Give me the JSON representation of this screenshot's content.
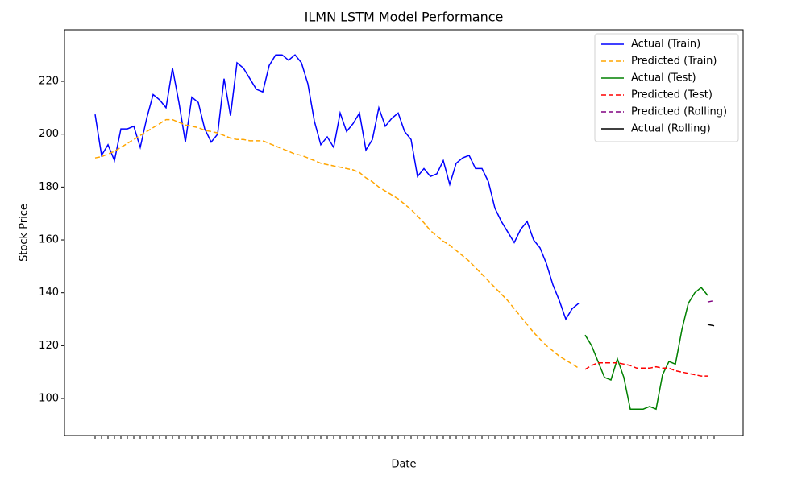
{
  "chart_data": {
    "type": "line",
    "title": "ILMN LSTM Model Performance",
    "x_label": "Date",
    "y_label": "Stock Price",
    "categories": [
      null,
      null,
      null,
      null,
      null,
      null,
      null,
      null,
      null,
      null,
      null,
      null,
      null,
      null,
      null,
      null,
      null,
      null,
      null,
      null,
      null,
      null,
      null,
      null,
      null,
      null,
      null,
      null,
      null,
      null,
      null,
      null,
      null,
      null,
      null,
      null,
      null,
      null,
      null,
      null,
      null,
      null,
      null,
      null,
      null,
      null,
      null,
      null,
      null,
      null,
      null,
      null,
      null,
      null,
      null,
      null,
      null,
      null,
      null,
      null,
      null,
      null,
      null,
      null,
      null,
      null,
      null,
      null,
      null,
      null,
      null,
      null,
      null,
      null,
      null,
      null,
      null,
      null,
      null,
      null,
      null,
      null,
      null,
      null,
      null,
      null,
      null,
      null,
      null,
      null,
      null,
      null,
      null,
      null,
      null,
      null,
      null
    ],
    "series": [
      {
        "name": "Actual (Train)",
        "color": "#0000ff",
        "dash": "solid",
        "values": [
          207.5,
          192,
          196,
          190,
          202,
          202,
          203,
          195,
          206,
          215,
          213,
          210,
          225,
          212,
          197,
          214,
          212,
          202,
          197,
          200,
          221,
          207,
          227,
          225,
          221,
          217,
          216,
          226,
          230,
          230,
          228,
          230,
          227,
          219,
          205,
          196,
          199,
          195,
          208,
          201,
          204,
          208,
          194,
          198,
          210,
          203,
          206,
          208,
          201,
          198,
          184,
          187,
          184,
          185,
          190,
          181,
          189,
          191,
          192,
          187,
          187,
          182,
          172,
          167,
          163,
          159,
          164,
          167,
          160,
          157,
          151,
          143,
          137,
          130,
          134,
          136,
          null,
          null,
          null,
          null,
          null,
          null,
          null,
          null,
          null,
          null,
          null,
          null,
          null,
          null,
          null,
          null,
          null,
          null,
          null,
          null,
          null
        ]
      },
      {
        "name": "Predicted (Train)",
        "color": "#ffa500",
        "dash": "dashed",
        "values": [
          191,
          191.5,
          192.5,
          193.5,
          195,
          196.5,
          198,
          199.5,
          201,
          202.5,
          204,
          205.5,
          205.5,
          204.5,
          203.5,
          203,
          202.5,
          201.5,
          201,
          200.5,
          199.5,
          198.5,
          198,
          198,
          197.5,
          197.5,
          197.5,
          196.5,
          195.5,
          194.5,
          193.5,
          192.5,
          192,
          191,
          190,
          189,
          188.5,
          188,
          187.5,
          187,
          186.5,
          185.5,
          183.5,
          182,
          180,
          178.5,
          177,
          175.5,
          173.5,
          171.5,
          169,
          166.5,
          163.5,
          161.5,
          159.5,
          158,
          156,
          154,
          152,
          149.5,
          147,
          144.5,
          142,
          139.5,
          137,
          134,
          131,
          128,
          125,
          122.5,
          120,
          118,
          116,
          114.5,
          113,
          111.5,
          null,
          null,
          null,
          null,
          null,
          null,
          null,
          null,
          null,
          null,
          null,
          null,
          null,
          null,
          null,
          null,
          null,
          null,
          null,
          null,
          null
        ]
      },
      {
        "name": "Actual (Test)",
        "color": "#008000",
        "dash": "solid",
        "values": [
          null,
          null,
          null,
          null,
          null,
          null,
          null,
          null,
          null,
          null,
          null,
          null,
          null,
          null,
          null,
          null,
          null,
          null,
          null,
          null,
          null,
          null,
          null,
          null,
          null,
          null,
          null,
          null,
          null,
          null,
          null,
          null,
          null,
          null,
          null,
          null,
          null,
          null,
          null,
          null,
          null,
          null,
          null,
          null,
          null,
          null,
          null,
          null,
          null,
          null,
          null,
          null,
          null,
          null,
          null,
          null,
          null,
          null,
          null,
          null,
          null,
          null,
          null,
          null,
          null,
          null,
          null,
          null,
          null,
          null,
          null,
          null,
          null,
          null,
          null,
          null,
          124,
          120,
          114,
          108,
          107,
          115,
          108,
          96,
          96,
          96,
          97,
          96,
          109,
          114,
          113,
          126,
          136,
          140,
          142,
          139,
          null
        ]
      },
      {
        "name": "Predicted (Test)",
        "color": "#ff0000",
        "dash": "dashed",
        "values": [
          null,
          null,
          null,
          null,
          null,
          null,
          null,
          null,
          null,
          null,
          null,
          null,
          null,
          null,
          null,
          null,
          null,
          null,
          null,
          null,
          null,
          null,
          null,
          null,
          null,
          null,
          null,
          null,
          null,
          null,
          null,
          null,
          null,
          null,
          null,
          null,
          null,
          null,
          null,
          null,
          null,
          null,
          null,
          null,
          null,
          null,
          null,
          null,
          null,
          null,
          null,
          null,
          null,
          null,
          null,
          null,
          null,
          null,
          null,
          null,
          null,
          null,
          null,
          null,
          null,
          null,
          null,
          null,
          null,
          null,
          null,
          null,
          null,
          null,
          null,
          null,
          111,
          112.5,
          113.5,
          113.5,
          113.5,
          113.5,
          113,
          112.5,
          111.5,
          111.5,
          111.5,
          112,
          111.5,
          111.5,
          110.5,
          110,
          109.5,
          109,
          108.5,
          108.5,
          null
        ]
      },
      {
        "name": "Predicted (Rolling)",
        "color": "#800080",
        "dash": "dashed",
        "values": [
          null,
          null,
          null,
          null,
          null,
          null,
          null,
          null,
          null,
          null,
          null,
          null,
          null,
          null,
          null,
          null,
          null,
          null,
          null,
          null,
          null,
          null,
          null,
          null,
          null,
          null,
          null,
          null,
          null,
          null,
          null,
          null,
          null,
          null,
          null,
          null,
          null,
          null,
          null,
          null,
          null,
          null,
          null,
          null,
          null,
          null,
          null,
          null,
          null,
          null,
          null,
          null,
          null,
          null,
          null,
          null,
          null,
          null,
          null,
          null,
          null,
          null,
          null,
          null,
          null,
          null,
          null,
          null,
          null,
          null,
          null,
          null,
          null,
          null,
          null,
          null,
          null,
          null,
          null,
          null,
          null,
          null,
          null,
          null,
          null,
          null,
          null,
          null,
          null,
          null,
          null,
          null,
          null,
          null,
          null,
          136.5,
          137
        ]
      },
      {
        "name": "Actual (Rolling)",
        "color": "#000000",
        "dash": "solid",
        "values": [
          null,
          null,
          null,
          null,
          null,
          null,
          null,
          null,
          null,
          null,
          null,
          null,
          null,
          null,
          null,
          null,
          null,
          null,
          null,
          null,
          null,
          null,
          null,
          null,
          null,
          null,
          null,
          null,
          null,
          null,
          null,
          null,
          null,
          null,
          null,
          null,
          null,
          null,
          null,
          null,
          null,
          null,
          null,
          null,
          null,
          null,
          null,
          null,
          null,
          null,
          null,
          null,
          null,
          null,
          null,
          null,
          null,
          null,
          null,
          null,
          null,
          null,
          null,
          null,
          null,
          null,
          null,
          null,
          null,
          null,
          null,
          null,
          null,
          null,
          null,
          null,
          null,
          null,
          null,
          null,
          null,
          null,
          null,
          null,
          null,
          null,
          null,
          null,
          null,
          null,
          null,
          null,
          null,
          null,
          null,
          128,
          127.5
        ]
      }
    ],
    "ylim": [
      86,
      239.5
    ],
    "yticks": [
      100,
      120,
      140,
      160,
      180,
      200,
      220
    ],
    "grid": false,
    "legend": "upper right"
  }
}
